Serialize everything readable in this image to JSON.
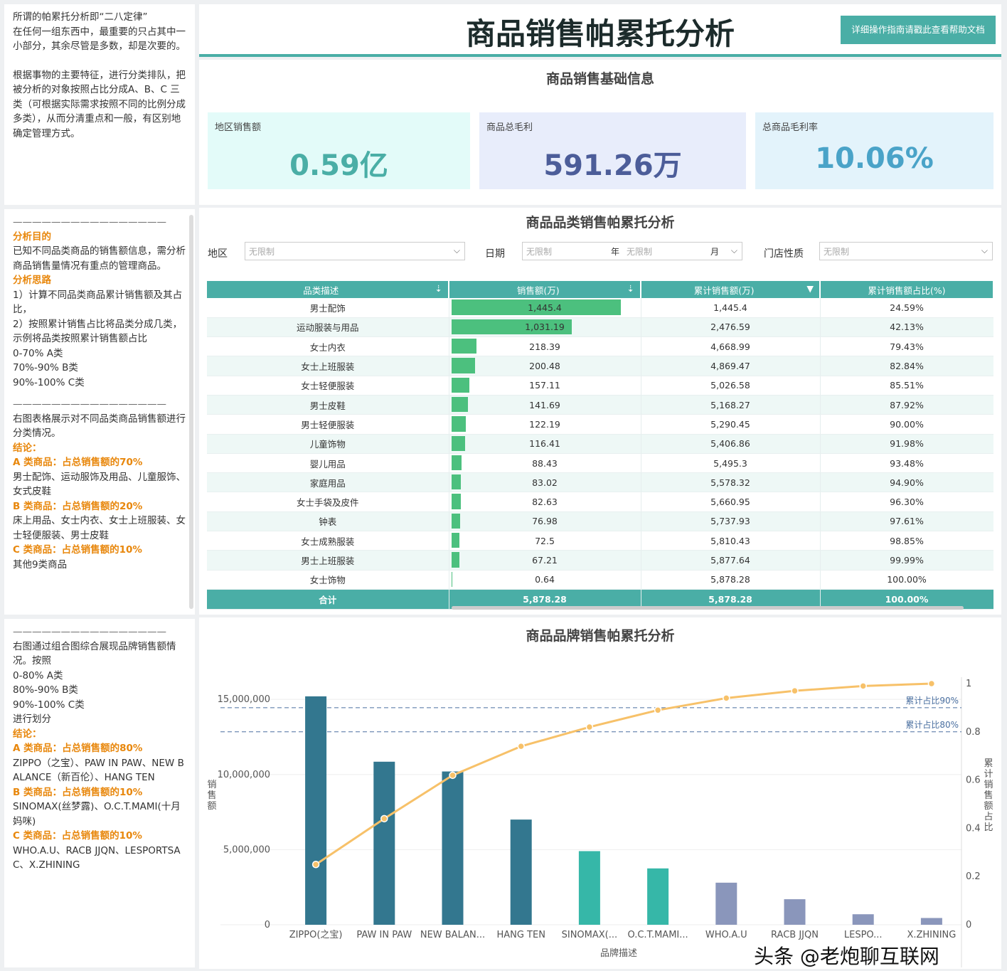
{
  "title": "商品销售帕累托分析",
  "help_button": "详细操作指南请戳此查看帮助文档",
  "notes": {
    "intro": [
      "所谓的帕累托分析即“二八定律”",
      "在任何一组东西中，最重要的只占其中一小部分，其余尽管是多数，却是次要的。",
      "",
      "根据事物的主要特征，进行分类排队，把被分析的对象按照占比分成A、B、C 三类（可根据实际需求按照不同的比例分成多类），从而分清重点和一般，有区别地确定管理方式。"
    ],
    "category": {
      "divider": "————————————————",
      "purpose_h": "分析目的",
      "purpose": "已知不同品类商品的销售额信息，需分析商品销售量情况有重点的管理商品。",
      "idea_h": "分析思路",
      "idea": "1）计算不同品类商品累计销售额及其占比，\n2）按照累计销售占比将品类分成几类，示例将品类按照累计销售额占比\n0-70% A类\n70%-90% B类\n90%-100% C类",
      "divider2": "————————————————",
      "desc": "右图表格展示对不同品类商品销售额进行分类情况。",
      "concl_h": "结论：",
      "a_h": "A 类商品：占总销售额的70%",
      "a": "男士配饰、运动服饰及用品、儿童服饰、女式皮鞋",
      "b_h": "B 类商品：占总销售额的20%",
      "b": "床上用品、女士内衣、女士上班服装、女士轻便服装、男士皮鞋",
      "c_h": "C 类商品：占总销售额的10%",
      "c": "其他9类商品"
    },
    "brand": {
      "divider": "————————————————",
      "desc": "右图通过组合图综合展现品牌销售额情况。按照\n0-80% A类\n80%-90% B类\n90%-100% C类\n进行划分",
      "concl_h": "结论：",
      "a_h": "A 类商品：占总销售额的80%",
      "a": "ZIPPO（之宝）、PAW IN PAW、NEW BALANCE（新百伦）、HANG TEN",
      "b_h": "B 类商品：占总销售额的10%",
      "b": "SINOMAX(丝梦露)、O.C.T.MAMI(十月妈咪)",
      "c_h": "C 类商品：占总销售额的10%",
      "c": "WHO.A.U、RACB JJQN、LESPORTSAC、X.ZHINING"
    }
  },
  "basic": {
    "title": "商品销售基础信息",
    "kpis": [
      {
        "label": "地区销售额",
        "value": "0.59亿",
        "color": "#4aaea6",
        "bg": "#e3fbf9"
      },
      {
        "label": "商品总毛利",
        "value": "591.26万",
        "color": "#4c5d99",
        "bg": "#e8edfb"
      },
      {
        "label": "总商品毛利率",
        "value": "10.06%",
        "color": "#4aa3c8",
        "bg": "#e3f3fb"
      }
    ]
  },
  "category_section": {
    "title": "商品品类销售帕累托分析",
    "filters": {
      "region_label": "地区",
      "region_value": "无限制",
      "date_label": "日期",
      "year_value": "无限制",
      "year_unit": "年",
      "month_value": "无限制",
      "month_unit": "月",
      "store_label": "门店性质",
      "store_value": "无限制"
    },
    "columns": [
      "品类描述",
      "销售额(万)",
      "累计销售额(万)",
      "累计销售额占比(%)"
    ],
    "rows": [
      [
        "男士配饰",
        "1,445.4",
        "1,445.4",
        "24.59%",
        1445.4
      ],
      [
        "运动服装与用品",
        "1,031.19",
        "2,476.59",
        "42.13%",
        1031.19
      ],
      [
        "女士内衣",
        "218.39",
        "4,668.99",
        "79.43%",
        218.39
      ],
      [
        "女士上班服装",
        "200.48",
        "4,869.47",
        "82.84%",
        200.48
      ],
      [
        "女士轻便服装",
        "157.11",
        "5,026.58",
        "85.51%",
        157.11
      ],
      [
        "男士皮鞋",
        "141.69",
        "5,168.27",
        "87.92%",
        141.69
      ],
      [
        "男士轻便服装",
        "122.19",
        "5,290.45",
        "90.00%",
        122.19
      ],
      [
        "儿童饰物",
        "116.41",
        "5,406.86",
        "91.98%",
        116.41
      ],
      [
        "婴儿用品",
        "88.43",
        "5,495.3",
        "93.48%",
        88.43
      ],
      [
        "家庭用品",
        "83.02",
        "5,578.32",
        "94.90%",
        83.02
      ],
      [
        "女士手袋及皮件",
        "82.63",
        "5,660.95",
        "96.30%",
        82.63
      ],
      [
        "钟表",
        "76.98",
        "5,737.93",
        "97.61%",
        76.98
      ],
      [
        "女士成熟服装",
        "72.5",
        "5,810.43",
        "98.85%",
        72.5
      ],
      [
        "男士上班服装",
        "67.21",
        "5,877.64",
        "99.99%",
        67.21
      ],
      [
        "女士饰物",
        "0.64",
        "5,878.28",
        "100.00%",
        0.64
      ]
    ],
    "total": [
      "合计",
      "5,878.28",
      "5,878.28",
      "100.00%"
    ]
  },
  "chart_data": {
    "type": "bar+line",
    "title": "商品品牌销售帕累托分析",
    "xlabel": "品牌描述",
    "ylabel": "销售额",
    "y2label": "累计销售额占比",
    "categories": [
      "ZIPPO(之宝)",
      "PAW IN PAW",
      "NEW BALAN...",
      "HANG TEN",
      "SINOMAX(...",
      "O.C.T.MAMI...",
      "WHO.A.U",
      "RACB JJQN",
      "LESPO...",
      "X.ZHINING"
    ],
    "values": [
      15200000,
      10850000,
      10200000,
      7000000,
      4900000,
      3750000,
      2800000,
      1700000,
      700000,
      450000
    ],
    "cumulative": [
      0.25,
      0.44,
      0.62,
      0.74,
      0.82,
      0.89,
      0.94,
      0.97,
      0.99,
      1.0
    ],
    "bar_colors": [
      "#33778f",
      "#33778f",
      "#33778f",
      "#33778f",
      "#36b7a8",
      "#36b7a8",
      "#8a96bb",
      "#8a96bb",
      "#8a96bb",
      "#8a96bb"
    ],
    "line_color": "#f7c169",
    "ylim": [
      0,
      16000000
    ],
    "y_ticks": [
      "0",
      "5,000,000",
      "10,000,000",
      "15,000,000"
    ],
    "y2_ticks": [
      "0",
      "0.2",
      "0.4",
      "0.6",
      "0.8",
      "1"
    ],
    "reference_lines": [
      {
        "label": "累计占比90%",
        "value": 0.9
      },
      {
        "label": "累计占比80%",
        "value": 0.8
      }
    ]
  },
  "watermark": "头条 @老炮聊互联网"
}
